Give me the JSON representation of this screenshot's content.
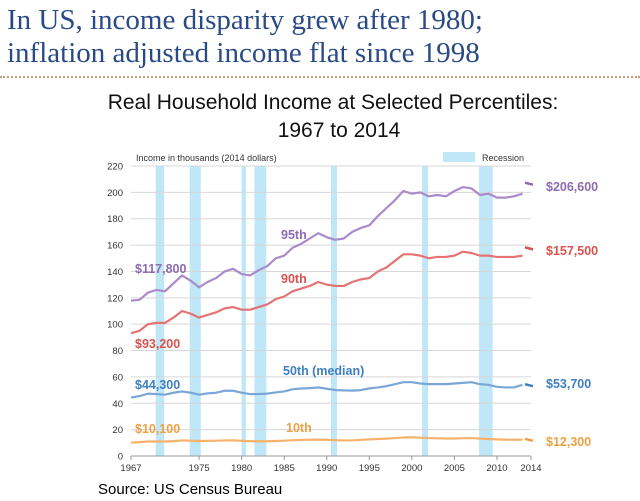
{
  "slide": {
    "title_line1": "In US, income disparity grew after 1980;",
    "title_line2": "inflation adjusted income flat since 1998",
    "source": "Source: US Census Bureau"
  },
  "chart_data": {
    "type": "line",
    "title": "Real Household Income at Selected Percentiles:",
    "subtitle": "1967 to 2014",
    "ylabel": "Income in thousands (2014 dollars)",
    "xlim": [
      1967,
      2014
    ],
    "ylim": [
      0,
      220
    ],
    "x_ticks": [
      1967,
      1975,
      1980,
      1985,
      1990,
      1995,
      2000,
      2005,
      2010,
      2014
    ],
    "y_ticks": [
      0,
      20,
      40,
      60,
      80,
      100,
      120,
      140,
      160,
      180,
      200,
      220
    ],
    "legend": {
      "label": "Recession",
      "position": "top-right"
    },
    "grid": true,
    "recessions": [
      [
        1969.9,
        1970.9
      ],
      [
        1973.9,
        1975.2
      ],
      [
        1980.0,
        1980.5
      ],
      [
        1981.5,
        1982.9
      ],
      [
        1990.5,
        1991.2
      ],
      [
        2001.2,
        2001.9
      ],
      [
        2007.9,
        2009.5
      ]
    ],
    "years": [
      1967,
      1968,
      1969,
      1970,
      1971,
      1972,
      1973,
      1974,
      1975,
      1976,
      1977,
      1978,
      1979,
      1980,
      1981,
      1982,
      1983,
      1984,
      1985,
      1986,
      1987,
      1988,
      1989,
      1990,
      1991,
      1992,
      1993,
      1994,
      1995,
      1996,
      1997,
      1998,
      1999,
      2000,
      2001,
      2002,
      2003,
      2004,
      2005,
      2006,
      2007,
      2008,
      2009,
      2010,
      2011,
      2012,
      2013
    ],
    "series": [
      {
        "name": "95th",
        "color": "#a98bcb",
        "label_color": "#8e6bb5",
        "start_label": "$117,800",
        "end_year": 2014,
        "end_value": 206.6,
        "end_label": "$206,600",
        "values": [
          117.8,
          118.5,
          124,
          126,
          125,
          131,
          137,
          133,
          128,
          132,
          135,
          140,
          142,
          138,
          137,
          141,
          144,
          150,
          152,
          158,
          161,
          165,
          169,
          166,
          164,
          165,
          170,
          173,
          175,
          182,
          188,
          194,
          201,
          199,
          200,
          197,
          198,
          197,
          201,
          204,
          203,
          198,
          199,
          196,
          196,
          197,
          199
        ]
      },
      {
        "name": "90th",
        "color": "#e57373",
        "label_color": "#d9534f",
        "start_label": "$93,200",
        "end_year": 2014,
        "end_value": 157.5,
        "end_label": "$157,500",
        "values": [
          93.2,
          95,
          100,
          101,
          101,
          105,
          110,
          108,
          105,
          107,
          109,
          112,
          113,
          111,
          111,
          113,
          115,
          119,
          121,
          125,
          127,
          129,
          132,
          130,
          129,
          129,
          132,
          134,
          135,
          140,
          143,
          148,
          153,
          153,
          152,
          150,
          151,
          151,
          152,
          155,
          154,
          152,
          152,
          151,
          151,
          151,
          152
        ]
      },
      {
        "name": "50th (median)",
        "color": "#7aa7d8",
        "label_color": "#3f7fc1",
        "start_label": "$44,300",
        "end_year": 2014,
        "end_value": 53.7,
        "end_label": "$53,700",
        "values": [
          44.3,
          45.5,
          47.3,
          47,
          46.5,
          48,
          49,
          48,
          46.5,
          47.5,
          48,
          49.5,
          49.5,
          48,
          47,
          47,
          47.3,
          48.2,
          49,
          50.7,
          51.2,
          51.5,
          52,
          51,
          50,
          49.8,
          49.6,
          50,
          51.3,
          52,
          53,
          54.5,
          56,
          56,
          55,
          54.5,
          54.5,
          54.5,
          55,
          55.5,
          56,
          54.5,
          54,
          52.5,
          52,
          52,
          54
        ]
      },
      {
        "name": "10th",
        "color": "#f6b26b",
        "label_color": "#f0a143",
        "start_label": "$10,100",
        "end_year": 2014,
        "end_value": 12.3,
        "end_label": "$12,300",
        "values": [
          10.1,
          10.5,
          11,
          11,
          11,
          11.3,
          11.8,
          11.6,
          11.4,
          11.5,
          11.6,
          11.8,
          11.9,
          11.5,
          11.2,
          11.2,
          11.2,
          11.4,
          11.6,
          12,
          12.2,
          12.3,
          12.4,
          12.3,
          12,
          11.8,
          11.9,
          12.2,
          12.6,
          12.9,
          13.2,
          13.6,
          14.1,
          14.2,
          13.9,
          13.6,
          13.4,
          13.3,
          13.3,
          13.5,
          13.6,
          13.2,
          12.9,
          12.6,
          12.4,
          12.3,
          12.4
        ]
      }
    ]
  }
}
